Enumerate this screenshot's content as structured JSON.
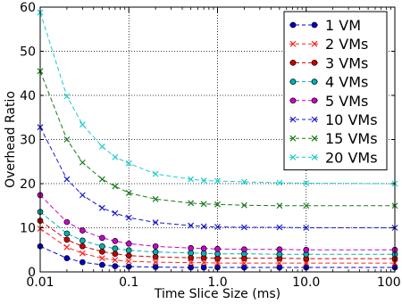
{
  "chart_data": {
    "type": "line",
    "xlabel": "Time Slice Size (ms)",
    "ylabel": "Overhead Ratio",
    "xscale": "log",
    "xlim": [
      0.01,
      100
    ],
    "ylim": [
      0,
      60
    ],
    "x_tick_labels": [
      "0.01",
      "0.1",
      "1.0",
      "10.0",
      "100.0"
    ],
    "y_ticks": [
      0,
      10,
      20,
      30,
      40,
      50,
      60
    ],
    "grid": true,
    "legend_position": "upper right",
    "x": [
      0.01,
      0.02,
      0.03,
      0.05,
      0.07,
      0.1,
      0.2,
      0.5,
      0.7,
      1.0,
      2.0,
      5.0,
      10.0,
      100.0
    ],
    "series": [
      {
        "name": "1 VM",
        "marker": "circle",
        "color": "#0000cc",
        "values": [
          5.8,
          3.1,
          2.2,
          1.6,
          1.3,
          1.2,
          1.1,
          1.0,
          1.0,
          1.0,
          1.0,
          1.0,
          1.0,
          1.0
        ]
      },
      {
        "name": "2 VMs",
        "marker": "x",
        "color": "#ff2222",
        "values": [
          9.8,
          5.6,
          4.2,
          3.1,
          2.7,
          2.4,
          2.2,
          2.1,
          2.1,
          2.0,
          2.0,
          2.0,
          2.0,
          2.0
        ]
      },
      {
        "name": "3 VMs",
        "marker": "circle",
        "color": "#cc0000",
        "values": [
          11.6,
          7.3,
          5.8,
          4.6,
          4.1,
          3.7,
          3.4,
          3.2,
          3.2,
          3.1,
          3.1,
          3.1,
          3.0,
          3.0
        ]
      },
      {
        "name": "4 VMs",
        "marker": "circle",
        "color": "#00b3b3",
        "values": [
          13.6,
          8.7,
          7.1,
          5.8,
          5.3,
          4.9,
          4.5,
          4.3,
          4.2,
          4.1,
          4.1,
          4.0,
          4.0,
          4.0
        ]
      },
      {
        "name": "5 VMs",
        "marker": "circle",
        "color": "#cc00cc",
        "values": [
          17.4,
          11.3,
          9.4,
          7.7,
          7.0,
          6.4,
          5.8,
          5.4,
          5.3,
          5.2,
          5.1,
          5.1,
          5.0,
          5.0
        ]
      },
      {
        "name": "10 VMs",
        "marker": "x",
        "color": "#1a1acc",
        "values": [
          32.8,
          21.0,
          17.4,
          14.5,
          13.3,
          12.3,
          11.2,
          10.5,
          10.3,
          10.2,
          10.1,
          10.1,
          10.0,
          10.0
        ]
      },
      {
        "name": "15 VMs",
        "marker": "x",
        "color": "#1a7a1a",
        "values": [
          45.5,
          30.0,
          24.8,
          21.0,
          19.4,
          17.9,
          16.5,
          15.6,
          15.4,
          15.3,
          15.1,
          15.0,
          15.0,
          15.0
        ]
      },
      {
        "name": "20 VMs",
        "marker": "x",
        "color": "#22cccc",
        "values": [
          58.8,
          39.8,
          33.4,
          28.4,
          26.0,
          24.6,
          22.2,
          21.0,
          20.7,
          20.6,
          20.4,
          20.2,
          20.1,
          20.0
        ]
      }
    ]
  }
}
